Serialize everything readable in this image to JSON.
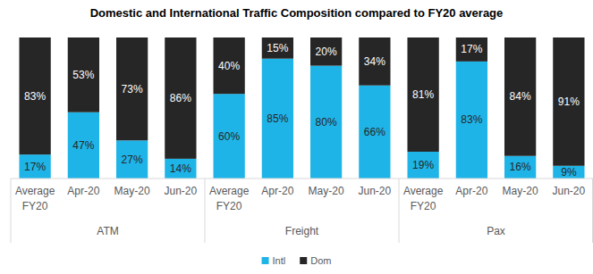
{
  "chart_data": {
    "type": "bar",
    "title": "Domestic and International Traffic Composition compared to FY20 average",
    "categories": [
      "Average FY20",
      "Apr-20",
      "May-20",
      "Jun-20",
      "Average FY20",
      "Apr-20",
      "May-20",
      "Jun-20",
      "Average FY20",
      "Apr-20",
      "May-20",
      "Jun-20"
    ],
    "category_groups": [
      "ATM",
      "Freight",
      "Pax"
    ],
    "series": [
      {
        "name": "Intl",
        "color": "#1fb4e8",
        "values": [
          17,
          47,
          27,
          14,
          60,
          85,
          80,
          66,
          19,
          83,
          16,
          9
        ],
        "value_labels": [
          "17%",
          "47%",
          "27%",
          "14%",
          "60%",
          "85%",
          "80%",
          "66%",
          "19%",
          "83%",
          "16%",
          "9%"
        ]
      },
      {
        "name": "Dom",
        "color": "#262626",
        "values": [
          83,
          53,
          73,
          86,
          40,
          15,
          20,
          34,
          81,
          17,
          84,
          91
        ],
        "value_labels": [
          "83%",
          "53%",
          "73%",
          "86%",
          "40%",
          "15%",
          "20%",
          "34%",
          "81%",
          "17%",
          "84%",
          "91%"
        ]
      }
    ],
    "ylim": [
      0,
      100
    ],
    "stacked": true,
    "data_labels": true,
    "grid": false,
    "legend": "bottom",
    "tick_labels": "x"
  }
}
